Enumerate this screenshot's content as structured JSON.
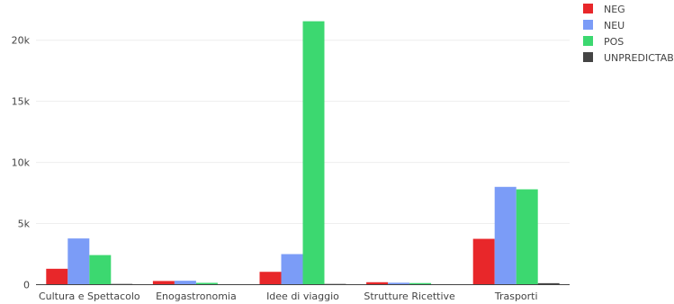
{
  "chart_data": {
    "type": "bar",
    "categories": [
      "Cultura e Spettacolo",
      "Enogastronomia",
      "Idee di viaggio",
      "Strutture Ricettive",
      "Trasporti"
    ],
    "series": [
      {
        "name": "NEG",
        "color": "#e8272a",
        "values": [
          1300,
          300,
          1050,
          200,
          3750
        ]
      },
      {
        "name": "NEU",
        "color": "#7b9cf7",
        "values": [
          3780,
          320,
          2500,
          160,
          8000
        ]
      },
      {
        "name": "POS",
        "color": "#3cd870",
        "values": [
          2420,
          150,
          21550,
          130,
          7800
        ]
      },
      {
        "name": "UNPREDICTAB",
        "color": "#444444",
        "values": [
          60,
          40,
          60,
          40,
          120
        ]
      }
    ],
    "yticks": [
      {
        "value": 0,
        "label": "0"
      },
      {
        "value": 5000,
        "label": "5k"
      },
      {
        "value": 10000,
        "label": "10k"
      },
      {
        "value": 15000,
        "label": "15k"
      },
      {
        "value": 20000,
        "label": "20k"
      }
    ],
    "ylim": [
      0,
      22700
    ],
    "grid": true,
    "legend_position": "top-right"
  }
}
